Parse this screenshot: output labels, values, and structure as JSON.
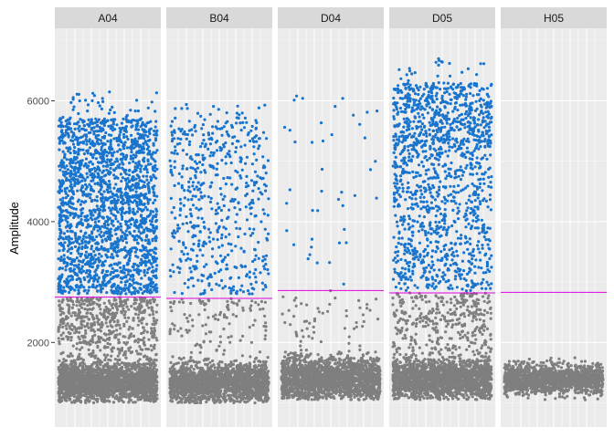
{
  "chart_data": {
    "type": "scatter",
    "facets": [
      "A04",
      "B04",
      "D04",
      "D05",
      "H05"
    ],
    "ylabel": "Amplitude",
    "xlabel": "",
    "ylim": [
      600,
      7200
    ],
    "y_ticks": [
      2000,
      4000,
      6000
    ],
    "grid": true,
    "threshold_color": "#e000e0",
    "colors": {
      "positive": "#1874cd",
      "negative": "#7f7f7f",
      "panel_bg": "#ebebeb",
      "strip_bg": "#d9d9d9",
      "grid": "#ffffff"
    },
    "panels": [
      {
        "facet": "A04",
        "threshold": 2750,
        "negative_cluster": {
          "center": 1350,
          "spread": 170,
          "count": 2200,
          "min": 1000,
          "max": 1800
        },
        "negative_scatter": {
          "count": 520,
          "min": 1800,
          "max": 2750
        },
        "positive_bands": [
          {
            "min": 2800,
            "max": 4700,
            "count": 1300
          },
          {
            "min": 4700,
            "max": 5700,
            "count": 650
          },
          {
            "min": 5700,
            "max": 6150,
            "count": 40
          }
        ]
      },
      {
        "facet": "B04",
        "threshold": 2730,
        "negative_cluster": {
          "center": 1340,
          "spread": 160,
          "count": 1800,
          "min": 1000,
          "max": 1750
        },
        "negative_scatter": {
          "count": 120,
          "min": 1750,
          "max": 2730
        },
        "positive_bands": [
          {
            "min": 2800,
            "max": 4700,
            "count": 330
          },
          {
            "min": 4700,
            "max": 5700,
            "count": 210
          },
          {
            "min": 5700,
            "max": 5950,
            "count": 20
          }
        ]
      },
      {
        "facet": "D04",
        "threshold": 2860,
        "negative_cluster": {
          "center": 1400,
          "spread": 170,
          "count": 1900,
          "min": 1050,
          "max": 1900
        },
        "negative_scatter": {
          "count": 55,
          "min": 1900,
          "max": 2860
        },
        "positive_bands": [
          {
            "min": 2900,
            "max": 4700,
            "count": 22
          },
          {
            "min": 4700,
            "max": 6100,
            "count": 20
          }
        ]
      },
      {
        "facet": "D05",
        "threshold": 2820,
        "negative_cluster": {
          "center": 1400,
          "spread": 170,
          "count": 1900,
          "min": 1050,
          "max": 1850
        },
        "negative_scatter": {
          "count": 330,
          "min": 1850,
          "max": 2820
        },
        "positive_bands": [
          {
            "min": 2850,
            "max": 5200,
            "count": 760
          },
          {
            "min": 5200,
            "max": 6300,
            "count": 620
          },
          {
            "min": 6300,
            "max": 6700,
            "count": 22
          }
        ]
      },
      {
        "facet": "H05",
        "threshold": 2830,
        "negative_cluster": {
          "center": 1390,
          "spread": 120,
          "count": 1500,
          "min": 1050,
          "max": 1750
        },
        "negative_scatter": {
          "count": 0,
          "min": 1750,
          "max": 2830
        },
        "positive_bands": []
      }
    ]
  }
}
